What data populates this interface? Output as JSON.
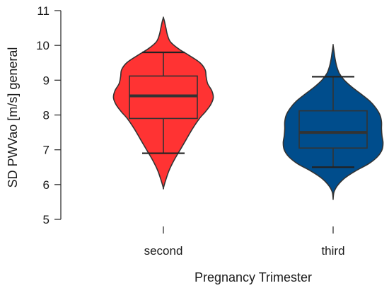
{
  "chart_data": {
    "type": "violin",
    "xlabel": "Pregnancy Trimester",
    "ylabel": "SD PWVao [m/s] general",
    "ylim": [
      5,
      11
    ],
    "yticks": [
      5,
      6,
      7,
      8,
      9,
      10,
      11
    ],
    "categories": [
      "second",
      "third"
    ],
    "grid": false,
    "groups": [
      {
        "category": "second",
        "color": "#ff3333",
        "box": {
          "whisker_low": 6.9,
          "q1": 7.9,
          "median": 8.55,
          "q3": 9.12,
          "whisker_high": 9.8
        },
        "density": [
          [
            5.9,
            0.0
          ],
          [
            6.1,
            0.04
          ],
          [
            6.4,
            0.11
          ],
          [
            6.7,
            0.21
          ],
          [
            7.0,
            0.33
          ],
          [
            7.3,
            0.45
          ],
          [
            7.6,
            0.57
          ],
          [
            7.9,
            0.71
          ],
          [
            8.1,
            0.83
          ],
          [
            8.3,
            0.93
          ],
          [
            8.5,
            0.98
          ],
          [
            8.7,
            0.95
          ],
          [
            8.9,
            0.87
          ],
          [
            9.1,
            0.84
          ],
          [
            9.3,
            0.82
          ],
          [
            9.5,
            0.72
          ],
          [
            9.7,
            0.52
          ],
          [
            9.9,
            0.3
          ],
          [
            10.1,
            0.14
          ],
          [
            10.3,
            0.08
          ],
          [
            10.5,
            0.05
          ],
          [
            10.7,
            0.02
          ],
          [
            10.8,
            0.0
          ]
        ]
      },
      {
        "category": "third",
        "color": "#004d8c",
        "box": {
          "whisker_low": 6.5,
          "q1": 7.05,
          "median": 7.5,
          "q3": 8.12,
          "whisker_high": 9.1
        },
        "density": [
          [
            5.6,
            0.0
          ],
          [
            5.8,
            0.02
          ],
          [
            6.0,
            0.1
          ],
          [
            6.2,
            0.24
          ],
          [
            6.4,
            0.45
          ],
          [
            6.6,
            0.7
          ],
          [
            6.8,
            0.87
          ],
          [
            7.0,
            0.96
          ],
          [
            7.2,
            0.98
          ],
          [
            7.4,
            0.96
          ],
          [
            7.6,
            0.95
          ],
          [
            7.8,
            0.95
          ],
          [
            8.0,
            0.92
          ],
          [
            8.2,
            0.84
          ],
          [
            8.4,
            0.72
          ],
          [
            8.6,
            0.55
          ],
          [
            8.8,
            0.37
          ],
          [
            9.0,
            0.22
          ],
          [
            9.2,
            0.12
          ],
          [
            9.4,
            0.07
          ],
          [
            9.6,
            0.04
          ],
          [
            9.8,
            0.02
          ],
          [
            10.0,
            0.0
          ]
        ]
      }
    ]
  }
}
